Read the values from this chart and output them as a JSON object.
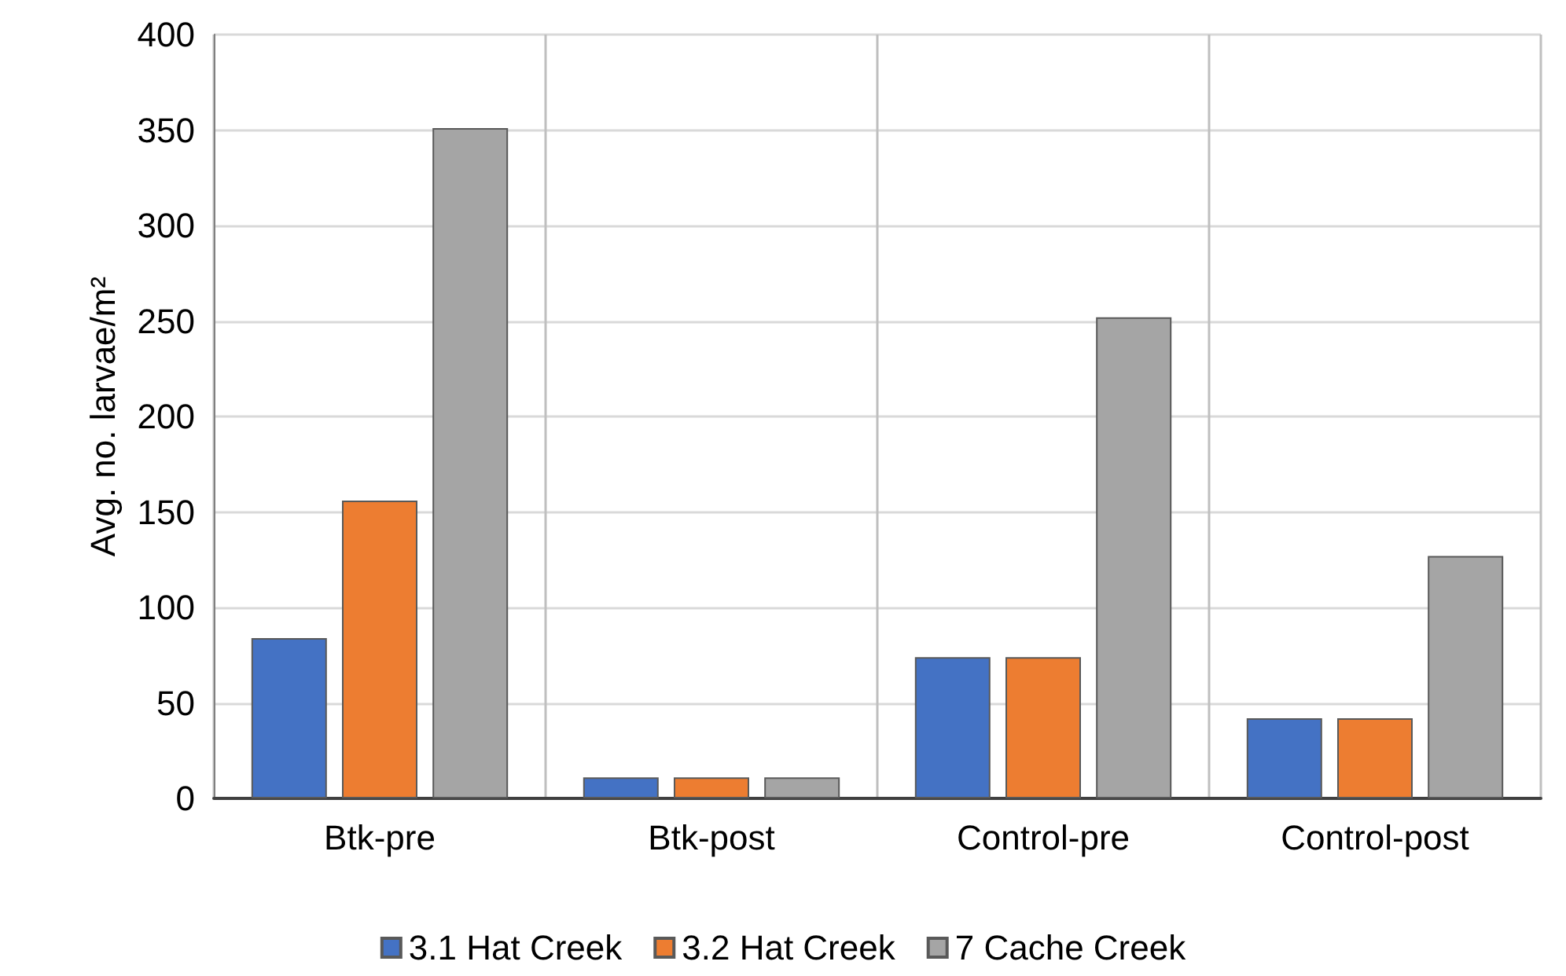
{
  "chart_data": {
    "type": "bar",
    "ylabel": "Avg. no. larvae/m²",
    "categories": [
      "Btk-pre",
      "Btk-post",
      "Control-pre",
      "Control-post"
    ],
    "series": [
      {
        "name": "3.1 Hat Creek",
        "color": "#4472c4",
        "values": [
          84,
          11,
          74,
          42
        ]
      },
      {
        "name": "3.2 Hat Creek",
        "color": "#ed7d31",
        "values": [
          156,
          11,
          74,
          42
        ]
      },
      {
        "name": "7 Cache Creek",
        "color": "#a5a5a5",
        "values": [
          351,
          11,
          252,
          127
        ]
      }
    ],
    "ylim": [
      0,
      400
    ],
    "yticks": [
      0,
      50,
      100,
      150,
      200,
      250,
      300,
      350,
      400
    ],
    "grid": true,
    "legend": "bottom"
  }
}
